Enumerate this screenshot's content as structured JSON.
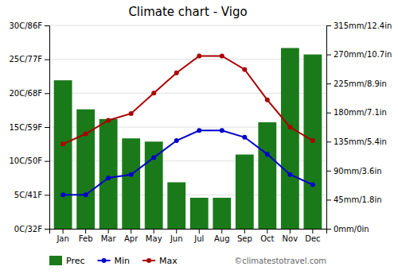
{
  "chart_data": {
    "type": "bar",
    "title": "Climate chart - Vigo",
    "categories": [
      "Jan",
      "Feb",
      "Mar",
      "Apr",
      "May",
      "Jun",
      "Jul",
      "Aug",
      "Sep",
      "Oct",
      "Nov",
      "Dec"
    ],
    "series": [
      {
        "name": "Prec",
        "type": "bar",
        "axis": "y2",
        "color": "#1a7a1a",
        "values": [
          230,
          185,
          170,
          140,
          135,
          72,
          48,
          48,
          115,
          165,
          280,
          270
        ]
      },
      {
        "name": "Min",
        "type": "line",
        "marker": "circle",
        "color": "#0000cc",
        "values": [
          5,
          5,
          7.5,
          8,
          10.5,
          13,
          14.5,
          14.5,
          13.5,
          11,
          8,
          6.5
        ]
      },
      {
        "name": "Max",
        "type": "line",
        "marker": "circle",
        "color": "#aa0000",
        "values": [
          12.5,
          14,
          16,
          17,
          20,
          23,
          25.5,
          25.5,
          23.5,
          19,
          15,
          13
        ]
      }
    ],
    "ylim": [
      0,
      30
    ],
    "yticks": [
      {
        "value": 0,
        "label": "0C/32F"
      },
      {
        "value": 5,
        "label": "5C/41F"
      },
      {
        "value": 10,
        "label": "10C/50F"
      },
      {
        "value": 15,
        "label": "15C/59F"
      },
      {
        "value": 20,
        "label": "20C/68F"
      },
      {
        "value": 25,
        "label": "25C/77F"
      },
      {
        "value": 30,
        "label": "30C/86F"
      }
    ],
    "y2lim": [
      0,
      315
    ],
    "y2ticks": [
      {
        "value": 0,
        "label": "0mm/0in"
      },
      {
        "value": 45,
        "label": "45mm/1.8in"
      },
      {
        "value": 90,
        "label": "90mm/3.6in"
      },
      {
        "value": 135,
        "label": "135mm/5.4in"
      },
      {
        "value": 180,
        "label": "180mm/7.1in"
      },
      {
        "value": 225,
        "label": "225mm/8.9in"
      },
      {
        "value": 270,
        "label": "270mm/10.7in"
      },
      {
        "value": 315,
        "label": "315mm/12.4in"
      }
    ],
    "grid": true,
    "legend": "bottom",
    "annotations": [
      "©climatestotravel.com"
    ]
  }
}
